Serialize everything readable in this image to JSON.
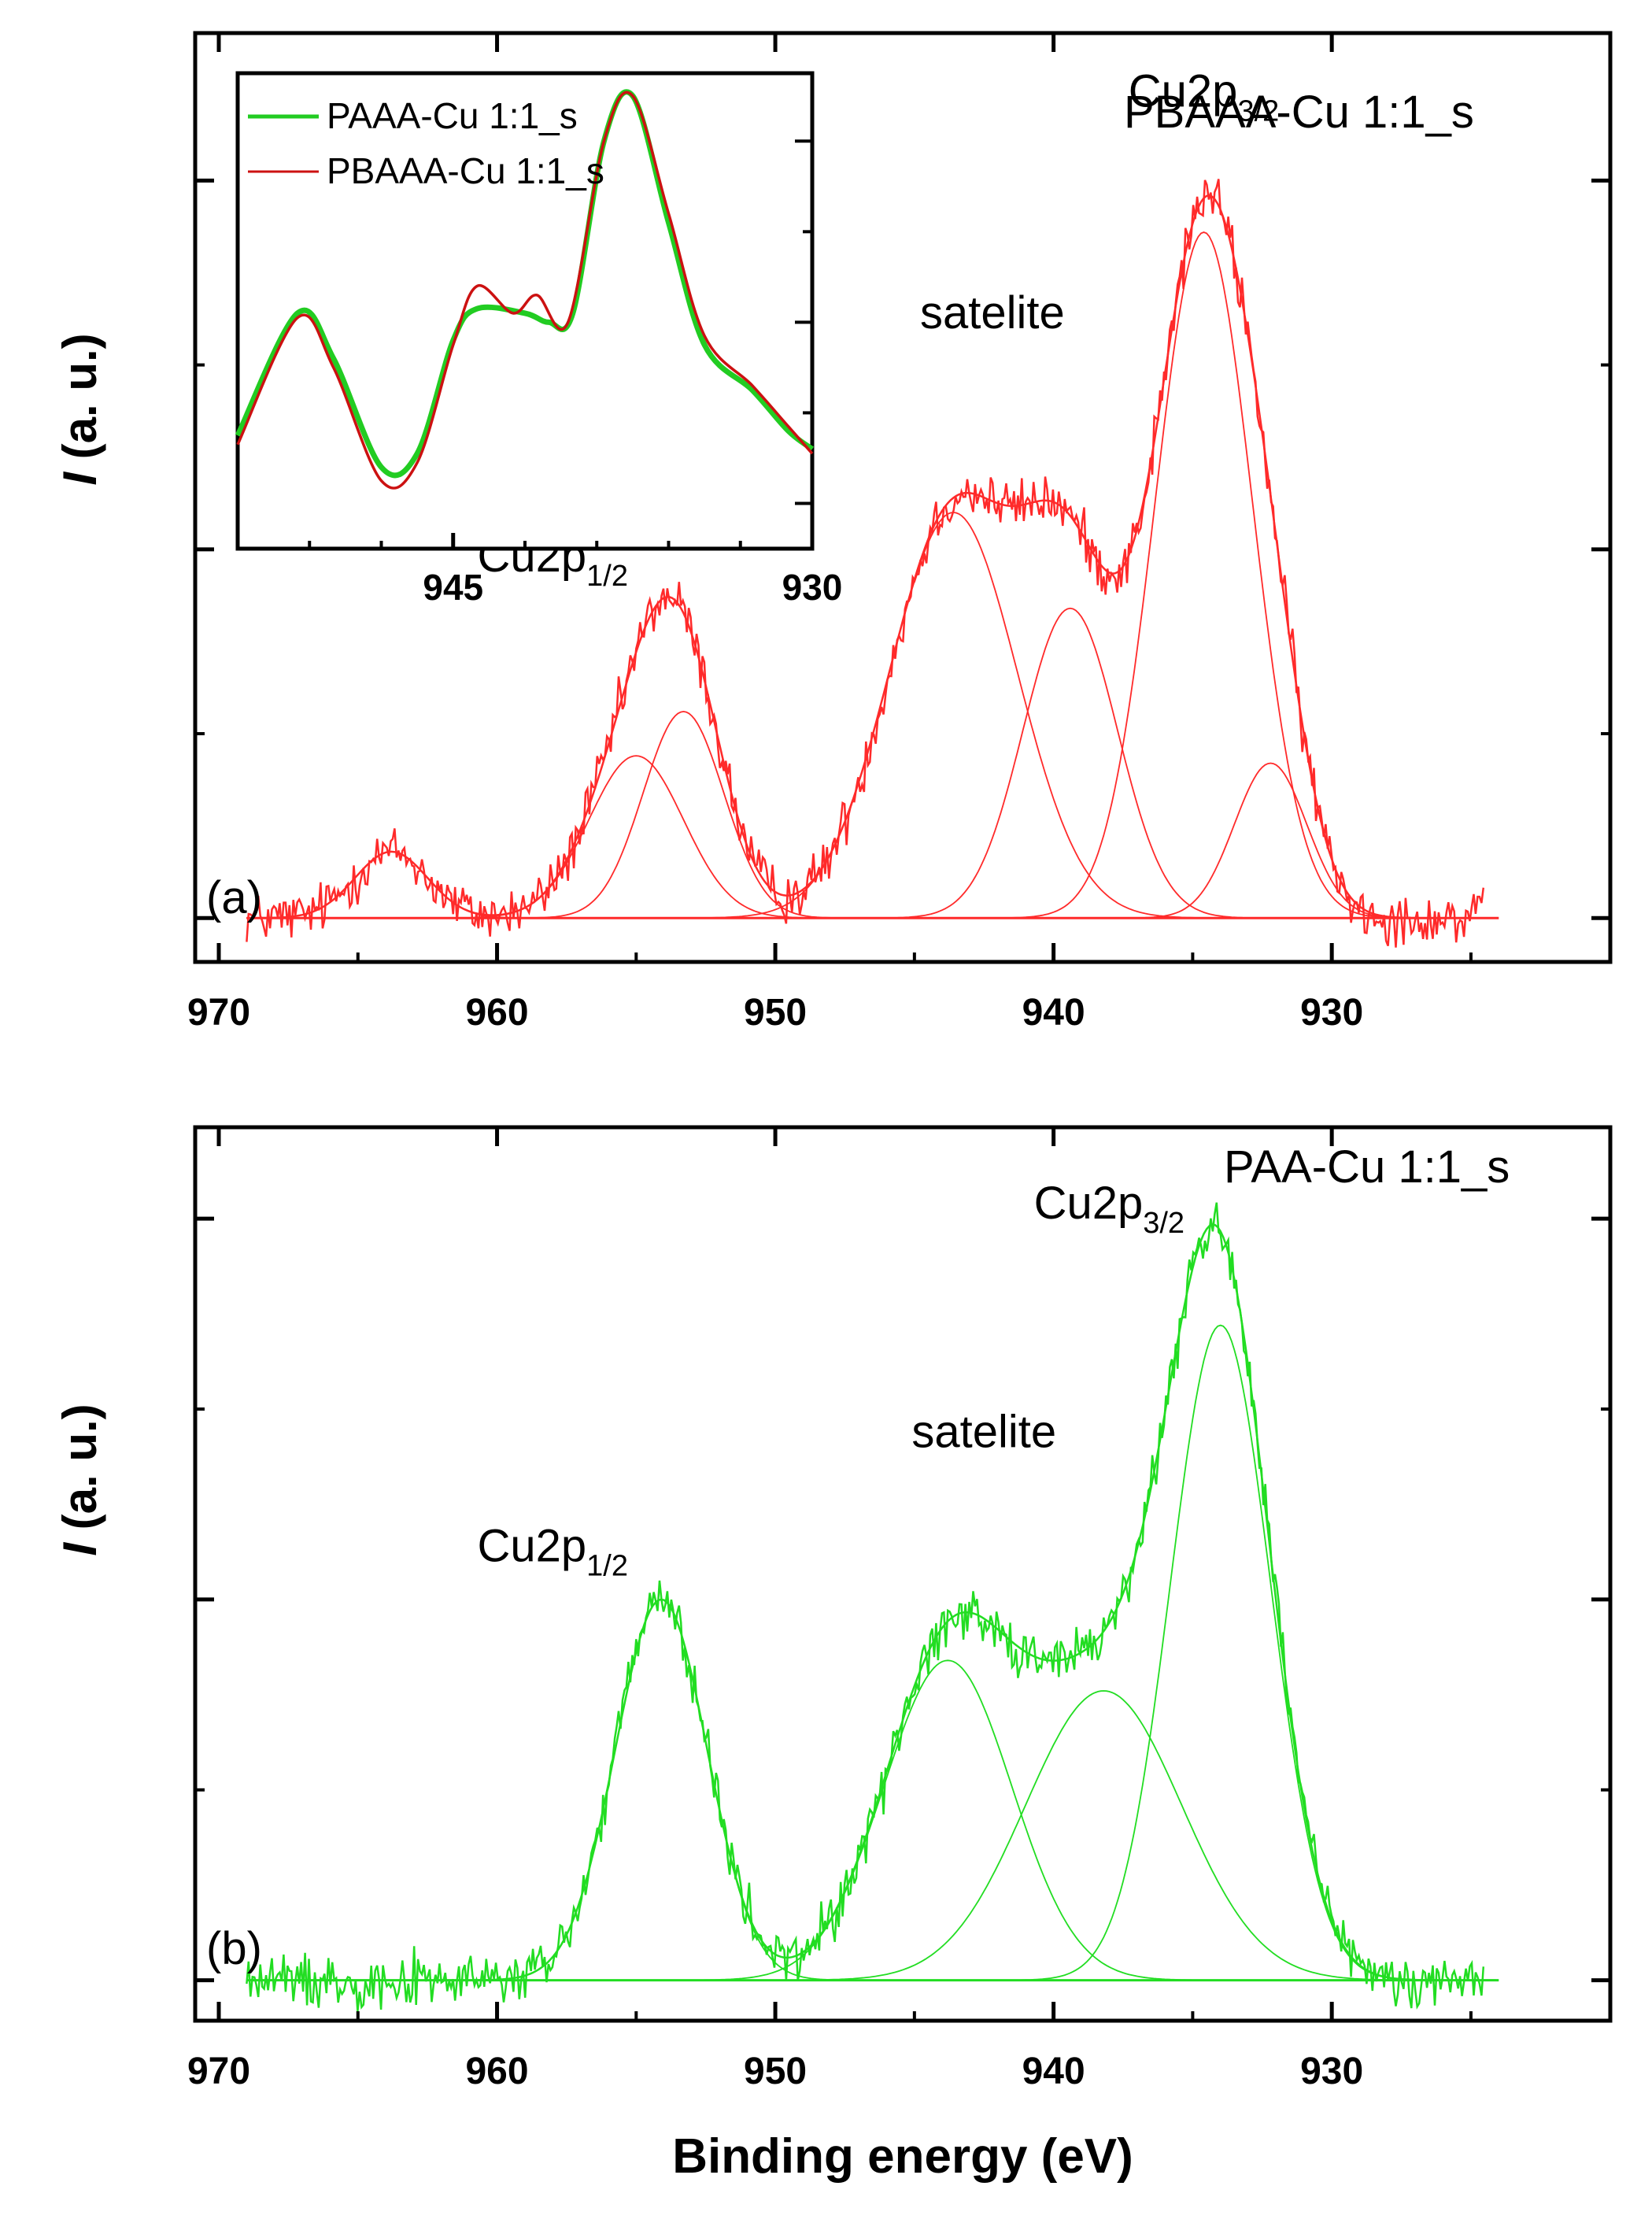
{
  "chart_data": [
    {
      "type": "line",
      "panel_label": "(a)",
      "sample_label": "PBAAA-Cu 1:1_s",
      "ylabel_italic": "I",
      "ylabel_rest": " (a. u.)",
      "xlim": [
        970,
        922
      ],
      "ylim": [
        -0.02,
        1.2
      ],
      "xticks": [
        970,
        960,
        950,
        940,
        930
      ],
      "color": "#ff2a2a",
      "noise": 0.022,
      "components": [
        {
          "name": "Cu2p3/2 main",
          "center": 934.6,
          "height": 0.93,
          "sigma": 1.75
        },
        {
          "name": "Cu2p3/2 low",
          "center": 932.2,
          "height": 0.21,
          "sigma": 1.3
        },
        {
          "name": "satellite 1",
          "center": 943.6,
          "height": 0.55,
          "sigma": 2.3
        },
        {
          "name": "satellite 2",
          "center": 939.4,
          "height": 0.42,
          "sigma": 1.7
        },
        {
          "name": "Cu2p1/2 a",
          "center": 955.0,
          "height": 0.22,
          "sigma": 1.7
        },
        {
          "name": "Cu2p1/2 b",
          "center": 953.3,
          "height": 0.28,
          "sigma": 1.45
        },
        {
          "name": "shake-up",
          "center": 963.8,
          "height": 0.09,
          "sigma": 1.3
        }
      ],
      "annotations": [
        {
          "text": "Cu2p",
          "sub": "3/2",
          "x": 934.6,
          "y": 1.1
        },
        {
          "text": "satelite",
          "x": 942.2,
          "y": 0.8
        },
        {
          "text": "Cu2p",
          "sub": "1/2",
          "x": 958.0,
          "y": 0.47
        }
      ],
      "inset": {
        "xlim": [
          954,
          930
        ],
        "ylim": [
          0.0,
          1.05
        ],
        "xticks": [
          945,
          930
        ],
        "series": [
          {
            "name": "PAAA-Cu 1:1_s",
            "color": "#22cc22",
            "points": [
              [
                954,
                0.25
              ],
              [
                951.5,
                0.52
              ],
              [
                950,
                0.42
              ],
              [
                948,
                0.18
              ],
              [
                946.5,
                0.21
              ],
              [
                945,
                0.46
              ],
              [
                944,
                0.53
              ],
              [
                942,
                0.52
              ],
              [
                941,
                0.5
              ],
              [
                940,
                0.52
              ],
              [
                938.7,
                0.9
              ],
              [
                937.5,
                1.0
              ],
              [
                936,
                0.72
              ],
              [
                934.5,
                0.45
              ],
              [
                932.5,
                0.35
              ],
              [
                931,
                0.26
              ],
              [
                930,
                0.22
              ]
            ]
          },
          {
            "name": "PBAAA-Cu 1:1_s",
            "color": "#cc1111",
            "points": [
              [
                954,
                0.23
              ],
              [
                951.5,
                0.51
              ],
              [
                950,
                0.4
              ],
              [
                948,
                0.15
              ],
              [
                946.5,
                0.19
              ],
              [
                945,
                0.45
              ],
              [
                944,
                0.58
              ],
              [
                942.5,
                0.52
              ],
              [
                941.5,
                0.56
              ],
              [
                940.2,
                0.5
              ],
              [
                938.7,
                0.9
              ],
              [
                937.5,
                1.0
              ],
              [
                936,
                0.74
              ],
              [
                934.5,
                0.47
              ],
              [
                932.5,
                0.36
              ],
              [
                931,
                0.27
              ],
              [
                930,
                0.21
              ]
            ]
          }
        ]
      }
    },
    {
      "type": "line",
      "panel_label": "(b)",
      "sample_label": "PAA-Cu 1:1_s",
      "ylabel_italic": "I",
      "ylabel_rest": " (a. u.)",
      "xlabel": "Binding energy (eV)",
      "xlim": [
        970,
        922
      ],
      "ylim": [
        -0.02,
        1.12
      ],
      "xticks": [
        970,
        960,
        950,
        940,
        930
      ],
      "color": "#22dd22",
      "noise": 0.022,
      "components": [
        {
          "name": "Cu2p3/2 main",
          "center": 934.0,
          "height": 0.86,
          "sigma": 1.8
        },
        {
          "name": "satellite 1",
          "center": 943.8,
          "height": 0.42,
          "sigma": 2.3
        },
        {
          "name": "satellite 2",
          "center": 938.2,
          "height": 0.38,
          "sigma": 2.8
        },
        {
          "name": "Cu2p1/2",
          "center": 954.1,
          "height": 0.5,
          "sigma": 1.65
        }
      ],
      "annotations": [
        {
          "text": "Cu2p",
          "sub": "3/2",
          "x": 938.0,
          "y": 1.0
        },
        {
          "text": "satelite",
          "x": 942.5,
          "y": 0.7
        },
        {
          "text": "Cu2p",
          "sub": "1/2",
          "x": 958.0,
          "y": 0.55
        }
      ]
    }
  ]
}
